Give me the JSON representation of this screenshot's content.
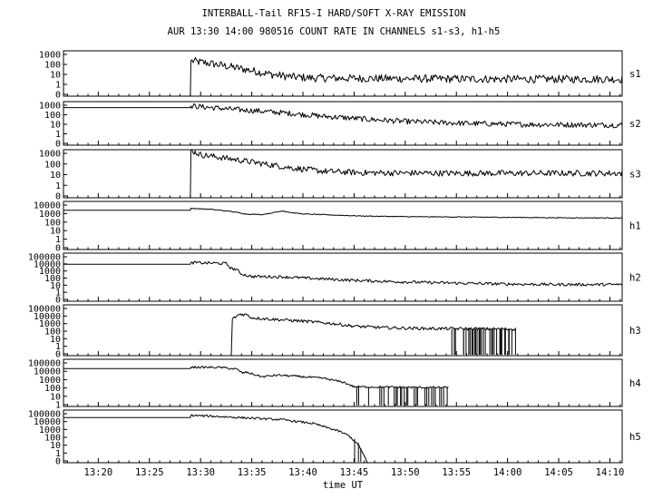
{
  "chart_data": {
    "type": "line",
    "title": "INTERBALL-Tail RF15-I HARD/SOFT X-RAY EMISSION",
    "subtitle": "AUR 13:30 14:00 980516  COUNT RATE IN CHANNELS s1-s3, h1-h5",
    "xlabel": "time UT",
    "x_ticks": [
      "13:20",
      "13:25",
      "13:30",
      "13:35",
      "13:40",
      "13:45",
      "13:50",
      "13:55",
      "14:00",
      "14:05",
      "14:10"
    ],
    "x_tick_minutes": [
      20,
      25,
      30,
      35,
      40,
      45,
      50,
      55,
      60,
      65,
      70
    ],
    "xlim_minutes_after_13h": [
      16.6,
      71.2
    ],
    "y_scale": "log",
    "panels": [
      {
        "channel": "s1",
        "ytick_labels": [
          "1000",
          "100",
          "10",
          "1",
          "0"
        ],
        "ylim": [
          0.1,
          1000
        ],
        "series": [
          [
            29,
            0.1
          ],
          [
            29.05,
            130
          ],
          [
            31,
            75
          ],
          [
            33,
            38
          ],
          [
            35,
            18
          ],
          [
            37,
            8
          ],
          [
            39,
            5
          ],
          [
            41,
            4
          ],
          [
            50,
            3.5
          ],
          [
            60,
            3.2
          ],
          [
            71.2,
            3.2
          ]
        ]
      },
      {
        "channel": "s2",
        "ytick_labels": [
          "1000",
          "100",
          "10",
          "1",
          "0"
        ],
        "ylim": [
          0.1,
          1000
        ],
        "series": [
          [
            16.6,
            280
          ],
          [
            29,
            280
          ],
          [
            29.05,
            400
          ],
          [
            30,
            340
          ],
          [
            33,
            200
          ],
          [
            36,
            130
          ],
          [
            39,
            80
          ],
          [
            42,
            45
          ],
          [
            46,
            25
          ],
          [
            50,
            15
          ],
          [
            56,
            10
          ],
          [
            62,
            8
          ],
          [
            71.2,
            7
          ]
        ]
      },
      {
        "channel": "s3",
        "ytick_labels": [
          "1000",
          "100",
          "10",
          "1",
          "0"
        ],
        "ylim": [
          0.1,
          1000
        ],
        "series": [
          [
            29,
            0.1
          ],
          [
            29.05,
            900
          ],
          [
            30,
            380
          ],
          [
            33,
            170
          ],
          [
            36,
            70
          ],
          [
            39,
            30
          ],
          [
            42,
            16
          ],
          [
            46,
            12
          ],
          [
            55,
            11
          ],
          [
            71.2,
            11
          ]
        ]
      },
      {
        "channel": "h1",
        "ytick_labels": [
          "10000",
          "1000",
          "100",
          "10",
          "1",
          "0"
        ],
        "ylim": [
          0.1,
          10000
        ],
        "series": [
          [
            16.6,
            1200
          ],
          [
            29,
            1200
          ],
          [
            29.05,
            1900
          ],
          [
            31,
            1500
          ],
          [
            33,
            900
          ],
          [
            34.5,
            480
          ],
          [
            36,
            430
          ],
          [
            37.2,
            700
          ],
          [
            38,
            1050
          ],
          [
            38.8,
            700
          ],
          [
            40,
            500
          ],
          [
            43,
            380
          ],
          [
            46,
            300
          ],
          [
            50,
            260
          ],
          [
            55,
            240
          ],
          [
            60,
            220
          ],
          [
            65,
            200
          ],
          [
            71.2,
            190
          ]
        ]
      },
      {
        "channel": "h2",
        "ytick_labels": [
          "100000",
          "10000",
          "1000",
          "100",
          "10",
          "1",
          "0"
        ],
        "ylim": [
          0.1,
          100000
        ],
        "series": [
          [
            16.6,
            4000
          ],
          [
            29,
            4000
          ],
          [
            29.05,
            6500
          ],
          [
            31.5,
            5500
          ],
          [
            32.5,
            5000
          ],
          [
            33,
            1200
          ],
          [
            33.5,
            900
          ],
          [
            34,
            250
          ],
          [
            35,
            120
          ],
          [
            38,
            110
          ],
          [
            40,
            80
          ],
          [
            45,
            40
          ],
          [
            50,
            25
          ],
          [
            55,
            18
          ],
          [
            60,
            14
          ],
          [
            65,
            12
          ],
          [
            71.2,
            12
          ]
        ]
      },
      {
        "channel": "h3",
        "ytick_labels": [
          "100000",
          "10000",
          "1000",
          "100",
          "10",
          "1",
          "0"
        ],
        "ylim": [
          0.1,
          100000
        ],
        "series": [
          [
            33,
            0.1
          ],
          [
            33.1,
            2000
          ],
          [
            33.8,
            8000
          ],
          [
            34.5,
            7000
          ],
          [
            35,
            3000
          ],
          [
            37,
            2000
          ],
          [
            40,
            1200
          ],
          [
            43,
            600
          ],
          [
            45,
            300
          ],
          [
            48,
            200
          ],
          [
            52,
            160
          ],
          [
            56,
            150
          ],
          [
            60,
            140
          ],
          [
            60.8,
            140
          ]
        ]
      },
      {
        "channel": "h4",
        "ytick_labels": [
          "100000",
          "10000",
          "1000",
          "100",
          "10",
          "1"
        ],
        "ylim": [
          0.3,
          100000
        ],
        "series": [
          [
            16.6,
            8000
          ],
          [
            29,
            8000
          ],
          [
            29.05,
            12000
          ],
          [
            32,
            11000
          ],
          [
            33.5,
            7000
          ],
          [
            34.1,
            2500
          ],
          [
            34.5,
            3000
          ],
          [
            35,
            2000
          ],
          [
            36,
            900
          ],
          [
            37.5,
            1400
          ],
          [
            39,
            1100
          ],
          [
            42,
            600
          ],
          [
            44,
            200
          ],
          [
            45,
            60
          ],
          [
            48,
            55
          ],
          [
            52,
            50
          ],
          [
            54.2,
            50
          ]
        ]
      },
      {
        "channel": "h5",
        "ytick_labels": [
          "100000",
          "10000",
          "1000",
          "100",
          "10",
          "1",
          "0"
        ],
        "ylim": [
          0.1,
          100000
        ],
        "series": [
          [
            16.6,
            14000
          ],
          [
            29,
            14000
          ],
          [
            29.05,
            25000
          ],
          [
            32,
            18000
          ],
          [
            35,
            12000
          ],
          [
            38,
            8000
          ],
          [
            41,
            3000
          ],
          [
            43.5,
            400
          ],
          [
            44.5,
            120
          ],
          [
            45.5,
            8
          ],
          [
            46.3,
            0.1
          ]
        ]
      }
    ]
  }
}
